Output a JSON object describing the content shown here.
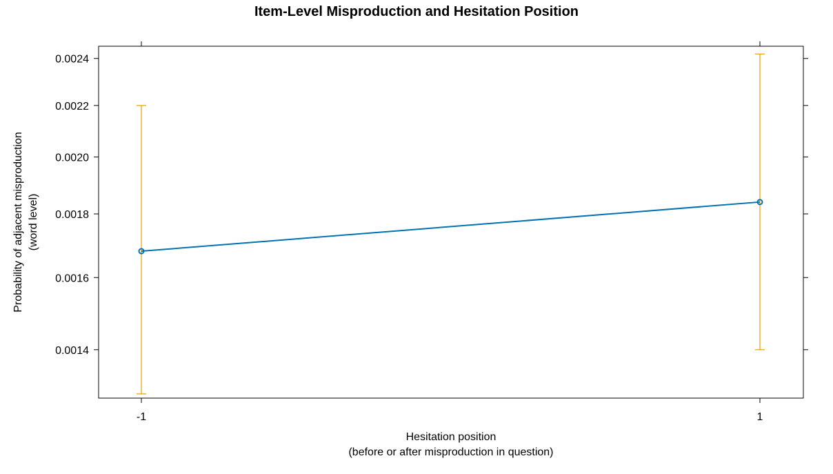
{
  "chart_data": {
    "type": "line",
    "title": "Item-Level Misproduction and Hesitation Position",
    "xlabel_lines": [
      "Hesitation position",
      "(before or after misproduction in question)"
    ],
    "ylabel_lines": [
      "Probability of adjacent misproduction",
      "(word level)"
    ],
    "categories": [
      "-1",
      "1"
    ],
    "y_scale": "log",
    "y_ticks": [
      0.0014,
      0.0016,
      0.0018,
      0.002,
      0.0022,
      0.0024
    ],
    "y_tick_labels": [
      "0.0014",
      "0.0016",
      "0.0018",
      "0.0020",
      "0.0022",
      "0.0024"
    ],
    "ylim": [
      0.00128,
      0.002455
    ],
    "series": [
      {
        "values": [
          0.00168,
          0.00184
        ],
        "lower": [
          0.00129,
          0.0014
        ],
        "upper": [
          0.0022,
          0.00242
        ]
      }
    ],
    "line_color": "#0072b2",
    "errorbar_color": "#e69f00",
    "grid": false,
    "legend": "none"
  }
}
